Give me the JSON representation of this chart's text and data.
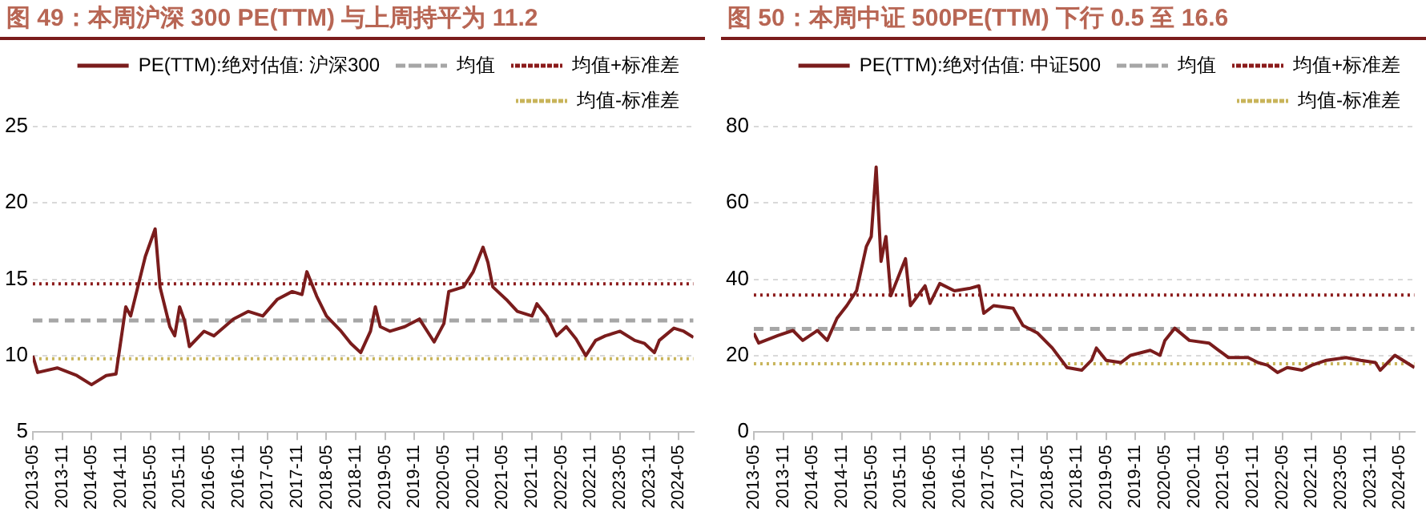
{
  "chart_data": [
    {
      "type": "line",
      "title": "图 49：本周沪深 300 PE(TTM) 与上周持平为 11.2",
      "x": [
        "2013-05",
        "2013-06",
        "2013-10",
        "2014-02",
        "2014-05",
        "2014-08",
        "2014-10",
        "2014-12",
        "2015-01",
        "2015-04",
        "2015-06",
        "2015-07",
        "2015-09",
        "2015-10",
        "2015-11",
        "2015-12",
        "2016-01",
        "2016-04",
        "2016-06",
        "2016-10",
        "2017-01",
        "2017-04",
        "2017-07",
        "2017-10",
        "2017-12",
        "2018-01",
        "2018-03",
        "2018-05",
        "2018-08",
        "2018-10",
        "2018-12",
        "2019-02",
        "2019-03",
        "2019-04",
        "2019-06",
        "2019-09",
        "2019-12",
        "2020-03",
        "2020-05",
        "2020-06",
        "2020-09",
        "2020-11",
        "2021-01",
        "2021-02",
        "2021-03",
        "2021-06",
        "2021-08",
        "2021-11",
        "2021-12",
        "2022-02",
        "2022-04",
        "2022-06",
        "2022-08",
        "2022-10",
        "2022-12",
        "2023-02",
        "2023-05",
        "2023-08",
        "2023-10",
        "2023-12",
        "2024-01",
        "2024-04",
        "2024-06",
        "2024-08"
      ],
      "series": [
        {
          "name": "PE(TTM):绝对估值: 沪深300",
          "color": "#7a1c1c",
          "values": [
            10.0,
            8.9,
            9.2,
            8.7,
            8.1,
            8.7,
            8.8,
            13.2,
            12.6,
            16.5,
            18.3,
            14.5,
            11.9,
            11.3,
            13.2,
            12.3,
            10.6,
            11.6,
            11.3,
            12.4,
            12.9,
            12.6,
            13.7,
            14.2,
            14.0,
            15.5,
            13.9,
            12.6,
            11.6,
            10.8,
            10.2,
            11.6,
            13.2,
            11.9,
            11.6,
            11.9,
            12.4,
            10.9,
            12.1,
            14.2,
            14.5,
            15.5,
            17.1,
            16.1,
            14.5,
            13.6,
            12.9,
            12.6,
            13.4,
            12.6,
            11.3,
            11.9,
            11.1,
            10.0,
            11.0,
            11.3,
            11.6,
            11.0,
            10.8,
            10.2,
            11.0,
            11.8,
            11.6,
            11.2
          ]
        }
      ],
      "ref_lines": [
        {
          "axis": "y",
          "value": 12.3,
          "label": "均值",
          "color": "#a6a6a6",
          "line_style": "dashed"
        },
        {
          "axis": "y",
          "value": 14.7,
          "label": "均值+标准差",
          "color": "#8b1a1a",
          "line_style": "dotted"
        },
        {
          "axis": "y",
          "value": 9.8,
          "label": "均值-标准差",
          "color": "#c8b45a",
          "line_style": "dotted"
        }
      ],
      "xlim": [
        "2013-05",
        "2024-08"
      ],
      "xticks": [
        "2013-05",
        "2013-11",
        "2014-05",
        "2014-11",
        "2015-05",
        "2015-11",
        "2016-05",
        "2016-11",
        "2017-05",
        "2017-11",
        "2018-05",
        "2018-11",
        "2019-05",
        "2019-11",
        "2020-05",
        "2020-11",
        "2021-05",
        "2021-11",
        "2022-05",
        "2022-11",
        "2023-05",
        "2023-11",
        "2024-05"
      ],
      "ylim": [
        5,
        25
      ],
      "yticks": [
        5,
        10,
        15,
        20,
        25
      ],
      "grid": "y",
      "legend": "top right",
      "marker": "none",
      "line_style": "solid"
    },
    {
      "type": "line",
      "title": "图 50：本周中证 500PE(TTM) 下行 0.5 至 16.6",
      "x": [
        "2013-05",
        "2013-06",
        "2013-10",
        "2014-01",
        "2014-03",
        "2014-06",
        "2014-08",
        "2014-10",
        "2014-12",
        "2015-02",
        "2015-04",
        "2015-05",
        "2015-06",
        "2015-07",
        "2015-08",
        "2015-09",
        "2015-11",
        "2015-12",
        "2016-01",
        "2016-04",
        "2016-05",
        "2016-07",
        "2016-10",
        "2017-01",
        "2017-03",
        "2017-04",
        "2017-06",
        "2017-10",
        "2017-12",
        "2018-03",
        "2018-06",
        "2018-09",
        "2018-12",
        "2019-02",
        "2019-03",
        "2019-05",
        "2019-08",
        "2019-10",
        "2020-02",
        "2020-04",
        "2020-05",
        "2020-07",
        "2020-10",
        "2021-02",
        "2021-04",
        "2021-06",
        "2021-10",
        "2021-12",
        "2022-02",
        "2022-04",
        "2022-06",
        "2022-09",
        "2022-11",
        "2023-02",
        "2023-06",
        "2023-09",
        "2023-12",
        "2024-01",
        "2024-04",
        "2024-08"
      ],
      "series": [
        {
          "name": "PE(TTM):绝对估值: 中证500",
          "color": "#7a1c1c",
          "values": [
            25.9,
            23.3,
            25.3,
            26.6,
            24.0,
            26.6,
            24.0,
            29.8,
            33.1,
            37.0,
            48.6,
            51.2,
            69.4,
            44.7,
            51.2,
            35.7,
            42.2,
            45.4,
            33.1,
            38.3,
            33.7,
            38.9,
            37.0,
            37.6,
            38.3,
            31.1,
            33.1,
            32.4,
            27.9,
            25.9,
            22.0,
            16.9,
            16.2,
            18.8,
            22.0,
            18.8,
            18.2,
            20.1,
            21.4,
            20.1,
            24.0,
            27.2,
            24.0,
            23.3,
            21.4,
            19.5,
            19.5,
            18.2,
            17.5,
            15.6,
            16.9,
            16.2,
            17.5,
            18.8,
            19.5,
            18.8,
            18.2,
            16.2,
            20.1,
            16.9
          ]
        }
      ],
      "ref_lines": [
        {
          "axis": "y",
          "value": 27.0,
          "label": "均值",
          "color": "#a6a6a6",
          "line_style": "dashed"
        },
        {
          "axis": "y",
          "value": 35.9,
          "label": "均值+标准差",
          "color": "#8b1a1a",
          "line_style": "dotted"
        },
        {
          "axis": "y",
          "value": 17.9,
          "label": "均值-标准差",
          "color": "#c8b45a",
          "line_style": "dotted"
        }
      ],
      "xlim": [
        "2013-05",
        "2024-08"
      ],
      "xticks": [
        "2013-05",
        "2013-11",
        "2014-05",
        "2014-11",
        "2015-05",
        "2015-11",
        "2016-05",
        "2016-11",
        "2017-05",
        "2017-11",
        "2018-05",
        "2018-11",
        "2019-05",
        "2019-11",
        "2020-05",
        "2020-11",
        "2021-05",
        "2021-11",
        "2022-05",
        "2022-11",
        "2023-05",
        "2023-11",
        "2024-05"
      ],
      "ylim": [
        0,
        80
      ],
      "yticks": [
        0,
        20,
        40,
        60,
        80
      ],
      "grid": "y",
      "legend": "top right",
      "marker": "none",
      "line_style": "solid"
    }
  ]
}
